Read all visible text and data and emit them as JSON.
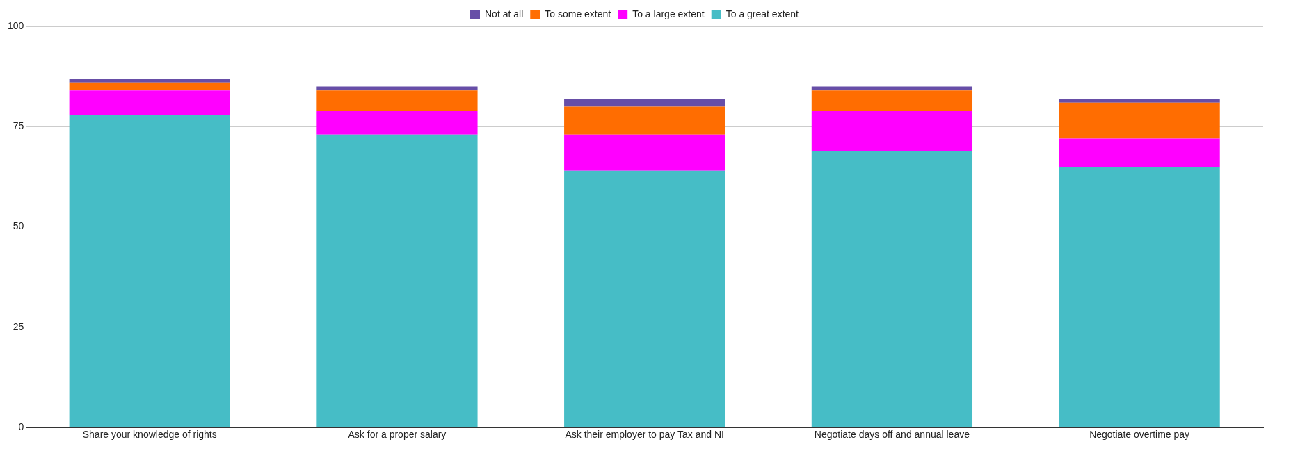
{
  "chart_data": {
    "type": "bar",
    "stacked": true,
    "categories": [
      "Share your knowledge of rights",
      "Ask for a proper salary",
      "Ask their employer to pay Tax and NI",
      "Negotiate days off and annual leave",
      "Negotiate overtime pay"
    ],
    "series": [
      {
        "name": "To a great extent",
        "color": "#46bdc6",
        "values": [
          78,
          73,
          64,
          69,
          65
        ]
      },
      {
        "name": "To a large extent",
        "color": "#ff00ff",
        "values": [
          6,
          6,
          9,
          10,
          7
        ]
      },
      {
        "name": "To some extent",
        "color": "#ff6d01",
        "values": [
          2,
          5,
          7,
          5,
          9
        ]
      },
      {
        "name": "Not at all",
        "color": "#674ea7",
        "values": [
          1,
          1,
          2,
          1,
          1
        ]
      }
    ],
    "ylim": [
      0,
      100
    ],
    "yticks": [
      0,
      25,
      50,
      75,
      100
    ],
    "grid": "y",
    "legend": "top"
  }
}
